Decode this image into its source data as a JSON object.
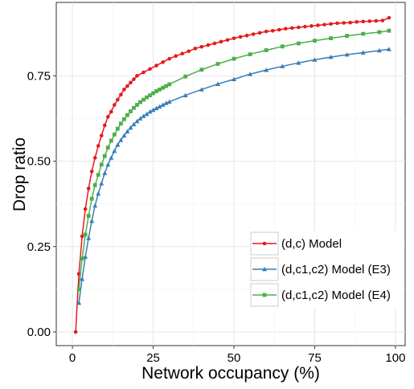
{
  "chart_data": {
    "type": "line",
    "title": "",
    "xlabel": "Network occupancy (%)",
    "ylabel": "Drop ratio",
    "xlim": [
      -5,
      103
    ],
    "ylim": [
      -0.04,
      0.965
    ],
    "x_ticks": [
      0,
      25,
      50,
      75,
      100
    ],
    "x_tick_labels": [
      "0",
      "25",
      "50",
      "75",
      "100"
    ],
    "y_ticks": [
      0.0,
      0.25,
      0.5,
      0.75
    ],
    "y_tick_labels": [
      "0.00",
      "0.25",
      "0.50",
      "0.75"
    ],
    "grid": true,
    "legend_position": "bottom-right",
    "series": [
      {
        "name": "(d,c) Model",
        "color": "#e41a1c",
        "marker": "circle",
        "x": [
          1,
          2,
          3,
          4,
          5,
          6,
          7,
          8,
          9,
          10,
          11,
          12,
          13,
          14,
          15,
          16,
          17,
          18,
          19,
          20,
          22,
          24,
          26,
          28,
          30,
          32,
          34,
          36,
          38,
          40,
          42,
          44,
          46,
          48,
          50,
          52,
          54,
          56,
          58,
          60,
          62,
          64,
          66,
          68,
          70,
          72,
          74,
          76,
          78,
          80,
          82,
          84,
          86,
          88,
          90,
          92,
          94,
          96,
          98
        ],
        "values": [
          0.0,
          0.17,
          0.28,
          0.36,
          0.42,
          0.47,
          0.51,
          0.545,
          0.575,
          0.605,
          0.63,
          0.645,
          0.665,
          0.68,
          0.695,
          0.71,
          0.72,
          0.73,
          0.74,
          0.75,
          0.76,
          0.77,
          0.78,
          0.79,
          0.8,
          0.808,
          0.815,
          0.822,
          0.83,
          0.835,
          0.84,
          0.845,
          0.85,
          0.855,
          0.86,
          0.864,
          0.868,
          0.872,
          0.876,
          0.88,
          0.882,
          0.885,
          0.888,
          0.89,
          0.892,
          0.894,
          0.896,
          0.898,
          0.9,
          0.902,
          0.904,
          0.905,
          0.906,
          0.908,
          0.909,
          0.91,
          0.911,
          0.912,
          0.92
        ]
      },
      {
        "name": "(d,c1,c2) Model (E3)",
        "color": "#377eb8",
        "marker": "triangle",
        "x": [
          2,
          3,
          4,
          5,
          6,
          7,
          8,
          9,
          10,
          11,
          12,
          13,
          14,
          15,
          16,
          17,
          18,
          19,
          20,
          21,
          22,
          23,
          24,
          25,
          26,
          27,
          28,
          29,
          30,
          35,
          40,
          45,
          50,
          55,
          60,
          65,
          70,
          75,
          80,
          85,
          90,
          95,
          98
        ],
        "values": [
          0.085,
          0.155,
          0.22,
          0.275,
          0.325,
          0.37,
          0.405,
          0.435,
          0.465,
          0.49,
          0.51,
          0.53,
          0.548,
          0.562,
          0.575,
          0.587,
          0.598,
          0.608,
          0.617,
          0.625,
          0.632,
          0.638,
          0.645,
          0.65,
          0.655,
          0.66,
          0.665,
          0.67,
          0.674,
          0.693,
          0.71,
          0.726,
          0.74,
          0.755,
          0.767,
          0.778,
          0.788,
          0.797,
          0.805,
          0.812,
          0.818,
          0.824,
          0.828
        ]
      },
      {
        "name": "(d,c1,c2) Model (E4)",
        "color": "#4daf4a",
        "marker": "square",
        "x": [
          2,
          3,
          4,
          5,
          6,
          7,
          8,
          9,
          10,
          11,
          12,
          13,
          14,
          15,
          16,
          17,
          18,
          19,
          20,
          21,
          22,
          23,
          24,
          25,
          26,
          27,
          28,
          29,
          30,
          35,
          40,
          45,
          50,
          55,
          60,
          65,
          70,
          75,
          80,
          85,
          90,
          95,
          98
        ],
        "values": [
          0.125,
          0.215,
          0.285,
          0.34,
          0.39,
          0.43,
          0.46,
          0.49,
          0.515,
          0.54,
          0.56,
          0.578,
          0.595,
          0.61,
          0.623,
          0.635,
          0.646,
          0.656,
          0.665,
          0.673,
          0.68,
          0.687,
          0.693,
          0.699,
          0.705,
          0.71,
          0.715,
          0.72,
          0.725,
          0.748,
          0.768,
          0.785,
          0.8,
          0.813,
          0.825,
          0.836,
          0.845,
          0.853,
          0.86,
          0.867,
          0.873,
          0.878,
          0.882
        ]
      }
    ]
  }
}
